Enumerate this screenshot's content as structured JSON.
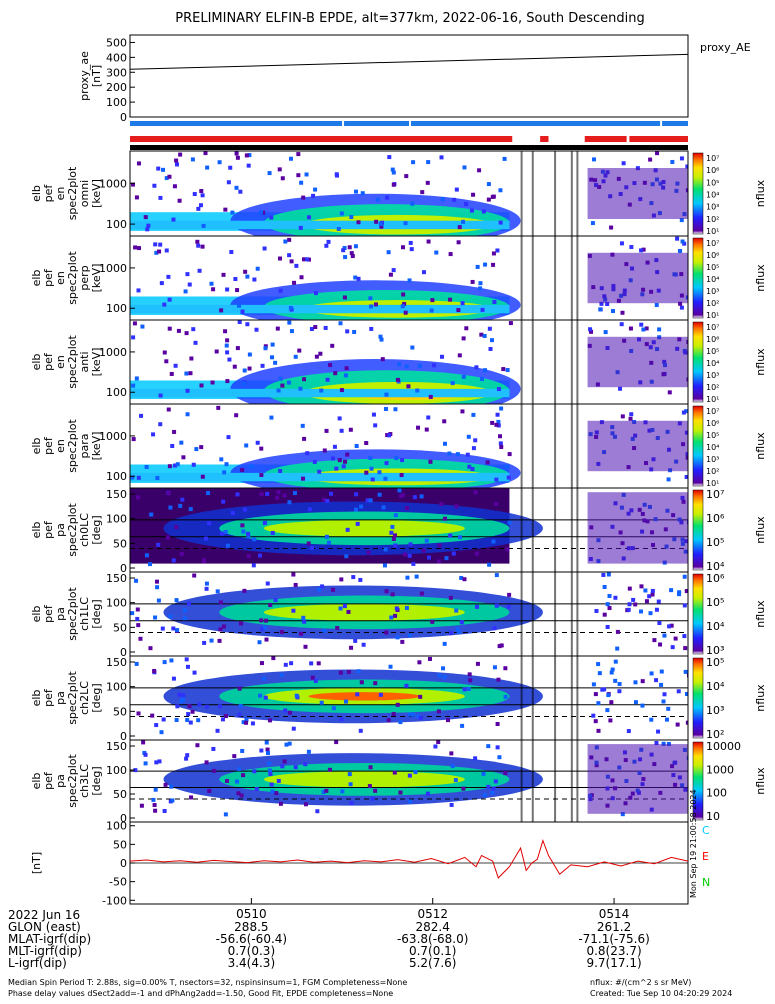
{
  "title": "PRELIMINARY ELFIN-B EPDE, alt=377km, 2022-06-16, South Descending",
  "chart_data": [
    {
      "type": "line",
      "id": "proxy_ae",
      "ylabel_lines": [
        "proxy_ae",
        "[nT]"
      ],
      "legend": "proxy_AE",
      "y_ticks": [
        "500",
        "400",
        "300",
        "200",
        "100",
        "0"
      ],
      "ylim": [
        0,
        550
      ],
      "x": [
        0.0,
        1.0
      ],
      "values": [
        320,
        420
      ]
    },
    {
      "type": "heatmap",
      "id": "en_spec_1",
      "ylabel_lines": [
        "elb",
        "pef",
        "en",
        "spec2plot",
        "omni",
        "[keV]"
      ],
      "y_ticks": [
        "1000",
        "100"
      ],
      "cbar_ticks": [
        "10⁷",
        "10⁶",
        "10⁵",
        "10⁴",
        "10³",
        "10²",
        "10¹"
      ],
      "cbar_label": "nflux"
    },
    {
      "type": "heatmap",
      "id": "en_spec_2",
      "ylabel_lines": [
        "elb",
        "pef",
        "en",
        "spec2plot",
        "perp",
        "[keV]"
      ],
      "y_ticks": [
        "1000",
        "100"
      ],
      "cbar_ticks": [
        "10⁷",
        "10⁶",
        "10⁵",
        "10⁴",
        "10³",
        "10²",
        "10¹"
      ],
      "cbar_label": "nflux"
    },
    {
      "type": "heatmap",
      "id": "en_spec_3",
      "ylabel_lines": [
        "elb",
        "pef",
        "en",
        "spec2plot",
        "anti",
        "[keV]"
      ],
      "y_ticks": [
        "1000",
        "100"
      ],
      "cbar_ticks": [
        "10⁷",
        "10⁶",
        "10⁵",
        "10⁴",
        "10³",
        "10²",
        "10¹"
      ],
      "cbar_label": "nflux"
    },
    {
      "type": "heatmap",
      "id": "en_spec_4",
      "ylabel_lines": [
        "elb",
        "pef",
        "en",
        "spec2plot",
        "para",
        "[keV]"
      ],
      "y_ticks": [
        "1000",
        "100"
      ],
      "cbar_ticks": [
        "10⁷",
        "10⁶",
        "10⁵",
        "10⁴",
        "10³",
        "10²",
        "10¹"
      ],
      "cbar_label": "nflux"
    },
    {
      "type": "heatmap",
      "id": "pa_ch0",
      "ylabel_lines": [
        "elb",
        "pef",
        "pa",
        "spec2plot",
        "ch0LC",
        "[deg]"
      ],
      "y_ticks": [
        "150",
        "100",
        "50",
        "0"
      ],
      "cbar_ticks": [
        "10⁷",
        "10⁶",
        "10⁵",
        "10⁴"
      ],
      "cbar_label": "nflux"
    },
    {
      "type": "heatmap",
      "id": "pa_ch1",
      "ylabel_lines": [
        "elb",
        "pef",
        "pa",
        "spec2plot",
        "ch1LC",
        "[deg]"
      ],
      "y_ticks": [
        "150",
        "100",
        "50",
        "0"
      ],
      "cbar_ticks": [
        "10⁶",
        "10⁵",
        "10⁴",
        "10³"
      ],
      "cbar_label": "nflux"
    },
    {
      "type": "heatmap",
      "id": "pa_ch2",
      "ylabel_lines": [
        "elb",
        "pef",
        "pa",
        "spec2plot",
        "ch2LC",
        "[deg]"
      ],
      "y_ticks": [
        "150",
        "100",
        "50",
        "0"
      ],
      "cbar_ticks": [
        "10⁵",
        "10⁴",
        "10³",
        "10²"
      ],
      "cbar_label": "nflux"
    },
    {
      "type": "heatmap",
      "id": "pa_ch3",
      "ylabel_lines": [
        "elb",
        "pef",
        "pa",
        "spec2plot",
        "ch3LC",
        "[deg]"
      ],
      "y_ticks": [
        "150",
        "100",
        "50",
        "0"
      ],
      "cbar_ticks": [
        "10000",
        "1000",
        "100",
        "10"
      ],
      "cbar_label": "nflux"
    },
    {
      "type": "line",
      "id": "mag",
      "ylabel_lines": [
        "[nT]"
      ],
      "y_ticks": [
        "100",
        "50",
        "0",
        "-50",
        "-100"
      ],
      "ylim": [
        -110,
        110
      ],
      "legend": [
        {
          "name": "C",
          "color": "#00ccff"
        },
        {
          "name": "E",
          "color": "#ff0000"
        },
        {
          "name": "N",
          "color": "#00cc00"
        }
      ],
      "series_x": [
        0.0,
        0.03,
        0.06,
        0.09,
        0.12,
        0.15,
        0.18,
        0.21,
        0.24,
        0.27,
        0.3,
        0.33,
        0.36,
        0.39,
        0.42,
        0.45,
        0.48,
        0.51,
        0.54,
        0.57,
        0.6,
        0.62,
        0.63,
        0.65,
        0.66,
        0.68,
        0.7,
        0.71,
        0.72,
        0.73,
        0.74,
        0.75,
        0.77,
        0.79,
        0.82,
        0.85,
        0.88,
        0.91,
        0.94,
        0.97,
        1.0
      ],
      "series_y": [
        5,
        8,
        3,
        6,
        2,
        7,
        4,
        1,
        6,
        3,
        8,
        2,
        5,
        1,
        6,
        3,
        9,
        2,
        12,
        -2,
        15,
        -10,
        20,
        5,
        -40,
        -10,
        40,
        -20,
        0,
        10,
        60,
        20,
        -30,
        -5,
        -10,
        3,
        -8,
        5,
        -2,
        15,
        5
      ]
    }
  ],
  "x_axis": {
    "ticks": [
      "0510",
      "0512",
      "0514"
    ]
  },
  "footer_rows": [
    {
      "label": "2022 Jun 16",
      "v1": "",
      "v2": "",
      "v3": ""
    },
    {
      "label": "GLON (east)",
      "v1": "288.5",
      "v2": "282.4",
      "v3": "261.2"
    },
    {
      "label": "MLAT-igrf(dip)",
      "v1": "-56.6(-60.4)",
      "v2": "-63.8(-68.0)",
      "v3": "-71.1(-75.6)"
    },
    {
      "label": "MLT-igrf(dip)",
      "v1": "0.7(0.3)",
      "v2": "0.7(0.1)",
      "v3": "0.8(23.7)"
    },
    {
      "label": "L-igrf(dip)",
      "v1": "3.4(4.3)",
      "v2": "5.2(7.6)",
      "v3": "9.7(17.1)"
    }
  ],
  "footer_notes": {
    "line1": "Median Spin Period T: 2.88s, sig=0.00% T, nsectors=32, nspinsinsum=1, FGM Completeness=None",
    "line2": "Phase delay values dSect2add=-1 and dPhAng2add=-1.50, Good Fit, EPDE completeness=None",
    "units": "nflux: #/(cm^2 s sr MeV)",
    "created": "Created: Tue Sep 10 04:20:29 2024",
    "side_stamp": "Mon Sep 19 21:00:58 2024"
  },
  "colors": {
    "blue_bar": "#1e7ae8",
    "red_bar": "#e51d1d"
  }
}
